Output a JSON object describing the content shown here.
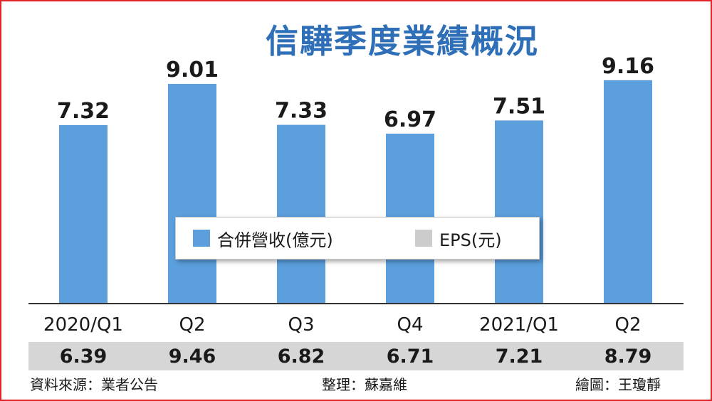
{
  "title": "信驊季度業績概況",
  "chart_data": {
    "type": "bar",
    "categories": [
      "2020/Q1",
      "Q2",
      "Q3",
      "Q4",
      "2021/Q1",
      "Q2"
    ],
    "series": [
      {
        "name": "合併營收(億元)",
        "values": [
          7.32,
          9.01,
          7.33,
          6.97,
          7.51,
          9.16
        ]
      },
      {
        "name": "EPS(元)",
        "values": [
          6.39,
          9.46,
          6.82,
          6.71,
          7.21,
          8.79
        ]
      }
    ],
    "value_labels": [
      "7.32",
      "9.01",
      "7.33",
      "6.97",
      "7.51",
      "9.16"
    ],
    "eps_labels": [
      "6.39",
      "9.46",
      "6.82",
      "6.71",
      "7.21",
      "8.79"
    ],
    "ylim": [
      0,
      10
    ],
    "grid": false,
    "legend_position": "center"
  },
  "legend": {
    "revenue_label": "合併營收(億元)",
    "eps_label": "EPS(元)"
  },
  "colors": {
    "bar": "#5b9fdc",
    "eps_swatch": "#cccccc",
    "title": "#2e6fb8",
    "border": "#e0262b"
  },
  "footer": {
    "source": "資料來源：業者公告",
    "editor": "整理：蘇嘉維",
    "illustrator": "繪圖：王瓊靜"
  }
}
